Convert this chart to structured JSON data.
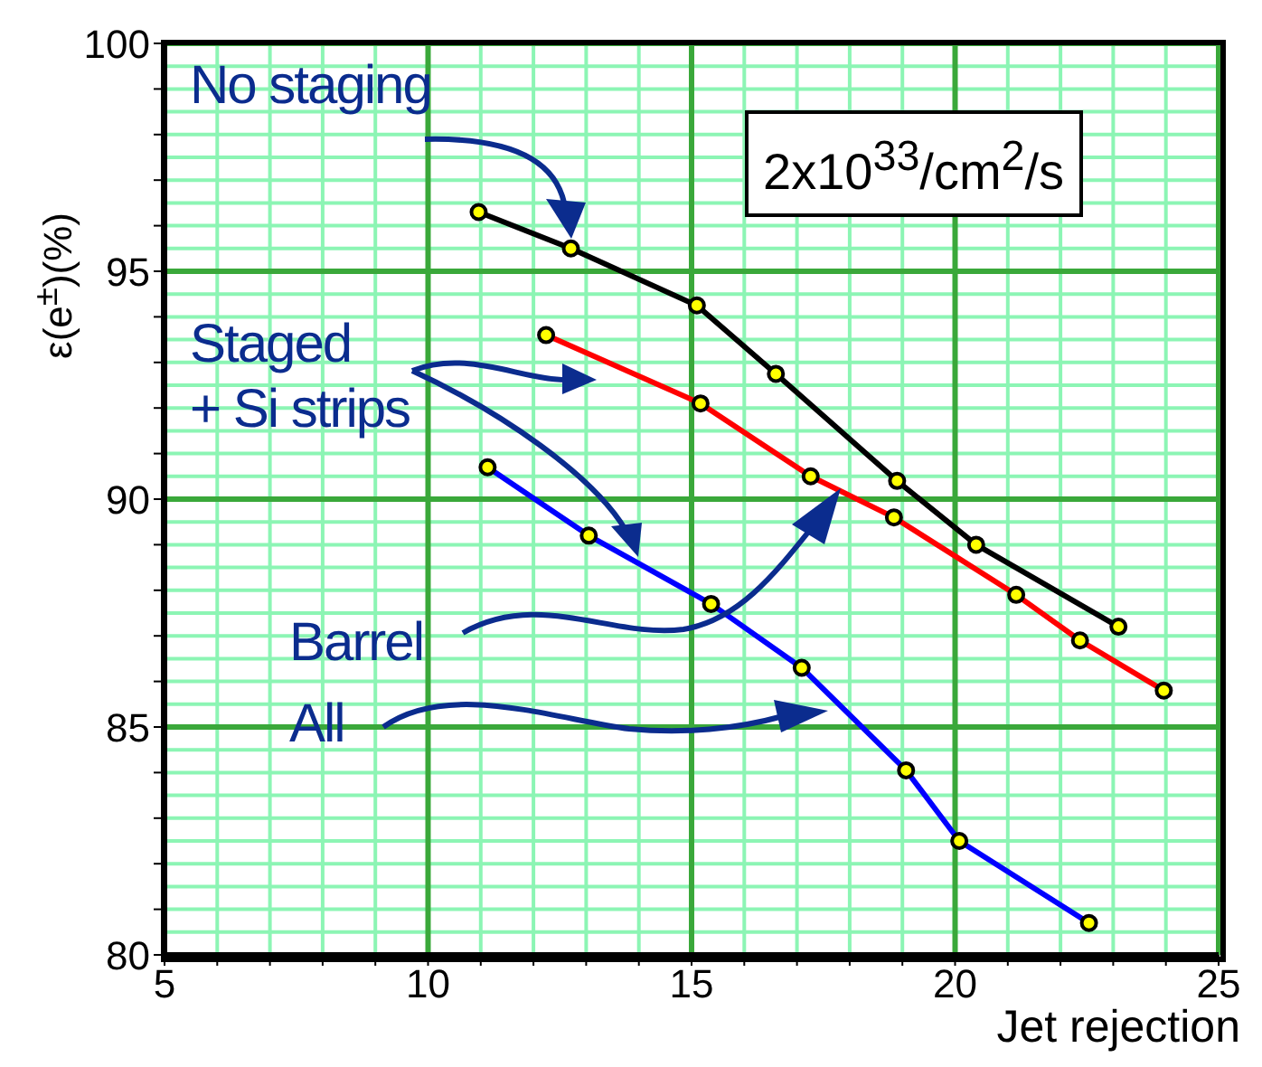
{
  "chart_data": {
    "type": "line",
    "xlabel": "Jet rejection",
    "ylabel": "ε(e$^{±}$)(%)",
    "annotations": [
      "No staging",
      "Staged\n+ Si strips",
      "Barrel",
      "All",
      "2x10$^{33}$/cm$^{2}$/s"
    ],
    "series": [
      {
        "color": "#000000",
        "x": [
          10.96,
          12.71,
          15.1,
          16.6,
          18.9,
          20.4,
          23.1
        ],
        "values": [
          96.3,
          95.5,
          94.25,
          92.75,
          90.4,
          89.0,
          87.2
        ]
      },
      {
        "color": "#ff0000",
        "x": [
          12.24,
          15.17,
          17.26,
          18.84,
          21.16,
          22.37,
          23.96
        ],
        "values": [
          93.6,
          92.1,
          90.5,
          89.6,
          87.9,
          86.9,
          85.8
        ]
      },
      {
        "color": "#0000ff",
        "x": [
          11.13,
          13.05,
          15.37,
          17.09,
          19.07,
          20.08,
          22.54
        ],
        "values": [
          90.7,
          89.2,
          87.7,
          86.3,
          84.05,
          82.5,
          80.7
        ]
      }
    ],
    "xlim": [
      5,
      25
    ],
    "ylim": [
      80,
      100
    ],
    "xticks": [
      5,
      {
        "value": 6,
        "label": null
      },
      {
        "value": 7,
        "label": null
      },
      {
        "value": 8,
        "label": null
      },
      {
        "value": 9,
        "label": null
      },
      10,
      {
        "value": 11,
        "label": null
      },
      {
        "value": 12,
        "label": null
      },
      {
        "value": 13,
        "label": null
      },
      {
        "value": 14,
        "label": null
      },
      15,
      {
        "value": 16,
        "label": null
      },
      {
        "value": 17,
        "label": null
      },
      {
        "value": 18,
        "label": null
      },
      {
        "value": 19,
        "label": null
      },
      20,
      {
        "value": 21,
        "label": null
      },
      {
        "value": 22,
        "label": null
      },
      {
        "value": 23,
        "label": null
      },
      {
        "value": 24,
        "label": null
      },
      25
    ],
    "yticks": [
      80,
      {
        "value": 81,
        "label": null
      },
      {
        "value": 82,
        "label": null
      },
      {
        "value": 83,
        "label": null
      },
      {
        "value": 84,
        "label": null
      },
      85,
      {
        "value": 86,
        "label": null
      },
      {
        "value": 87,
        "label": null
      },
      {
        "value": 88,
        "label": null
      },
      {
        "value": 89,
        "label": null
      },
      90,
      {
        "value": 91,
        "label": null
      },
      {
        "value": 92,
        "label": null
      },
      {
        "value": 93,
        "label": null
      },
      {
        "value": 94,
        "label": null
      },
      95,
      {
        "value": 96,
        "label": null
      },
      {
        "value": 97,
        "label": null
      },
      {
        "value": 98,
        "label": null
      },
      {
        "value": 99,
        "label": null
      },
      100
    ],
    "grid": true,
    "marker": "circle",
    "line_style": "solid"
  }
}
